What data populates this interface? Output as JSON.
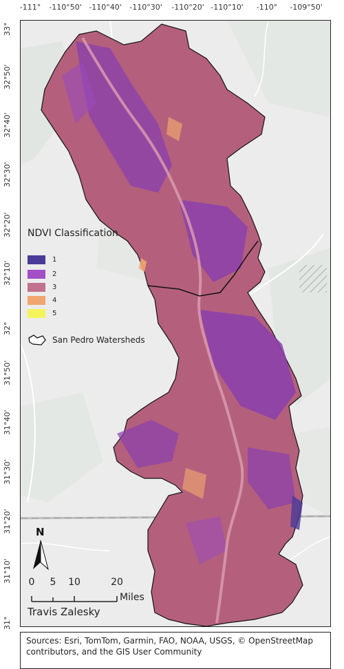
{
  "top_ticks": [
    "-111°",
    "-110°50'",
    "-110°40'",
    "-110°30'",
    "-110°20'",
    "-110°10'",
    "-110°",
    "-109°50'"
  ],
  "left_ticks": [
    "33°",
    "32°50'",
    "32°40'",
    "32°30'",
    "32°20'",
    "32°10'",
    "32°",
    "31°50'",
    "31°40'",
    "31°30'",
    "31°20'",
    "31°10'",
    "31°"
  ],
  "legend": {
    "title": "NDVI Classification",
    "classes": [
      {
        "label": "1",
        "color": "#4a3b98"
      },
      {
        "label": "2",
        "color": "#a24fc7"
      },
      {
        "label": "3",
        "color": "#c0728e"
      },
      {
        "label": "4",
        "color": "#f0a66e"
      },
      {
        "label": "5",
        "color": "#f4f45c"
      }
    ],
    "watershed_label": "San Pedro Watersheds"
  },
  "north_label": "N",
  "scale": {
    "labels": [
      "0",
      "5",
      "10",
      "20"
    ],
    "unit": "Miles"
  },
  "author": "Travis Zalesky",
  "sources": "Sources: Esri, TomTom, Garmin, FAO, NOAA, USGS, © OpenStreetMap contributors, and the GIS User Community",
  "colors": {
    "watershed_fill": "#b4607c",
    "watershed_mid": "#8a3fae",
    "basemap": "#ececec",
    "roads": "#ffffff"
  }
}
